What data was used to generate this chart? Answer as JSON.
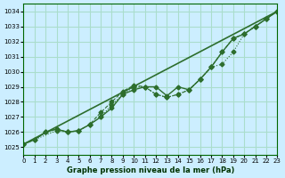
{
  "bg_color": "#cceeff",
  "grid_color": "#aaddcc",
  "line_color": "#2d6e2d",
  "title": "Graphe pression niveau de la mer (hPa)",
  "xlim": [
    0,
    23
  ],
  "ylim": [
    1024.5,
    1034.5
  ],
  "yticks": [
    1025,
    1026,
    1027,
    1028,
    1029,
    1030,
    1031,
    1032,
    1033,
    1034
  ],
  "xticks": [
    0,
    1,
    2,
    3,
    4,
    5,
    6,
    7,
    8,
    9,
    10,
    11,
    12,
    13,
    14,
    15,
    16,
    17,
    18,
    19,
    20,
    21,
    22,
    23
  ],
  "series1_x": [
    0,
    1,
    2,
    3,
    4,
    5,
    6,
    7,
    8,
    9,
    10,
    11,
    12,
    13,
    14,
    15,
    16,
    17,
    18,
    19,
    20,
    21,
    22,
    23
  ],
  "series1_y": [
    1025.2,
    1025.5,
    1026.0,
    1026.2,
    1026.0,
    1026.1,
    1026.5,
    1027.0,
    1027.6,
    1028.5,
    1028.8,
    1029.0,
    1029.0,
    1028.4,
    1029.0,
    1028.8,
    1029.5,
    1030.3,
    1031.3,
    1032.2,
    1032.5,
    1033.0,
    1033.5,
    1034.0
  ],
  "series2_x": [
    0,
    1,
    2,
    3,
    4,
    5,
    6,
    7,
    8,
    9,
    10,
    11,
    12,
    13,
    14,
    15,
    16,
    17,
    18,
    19,
    20,
    21,
    22,
    23
  ],
  "series2_y": [
    1025.2,
    1025.5,
    1026.0,
    1026.2,
    1026.0,
    1026.1,
    1026.5,
    1027.3,
    1028.0,
    1028.7,
    1029.1,
    1029.0,
    1028.5,
    1028.3,
    1028.5,
    1028.8,
    1029.5,
    1030.3,
    1031.3,
    1032.2,
    1032.5,
    1033.0,
    1033.5,
    1034.0
  ],
  "series3_x": [
    0,
    3,
    4,
    5,
    6,
    7,
    8,
    9,
    10,
    11,
    12,
    13,
    14,
    15,
    16,
    17,
    18,
    19,
    20,
    21,
    22,
    23
  ],
  "series3_y": [
    1025.2,
    1026.1,
    1026.0,
    1026.1,
    1026.5,
    1027.0,
    1027.8,
    1028.5,
    1029.0,
    1029.0,
    1028.5,
    1028.3,
    1028.5,
    1028.8,
    1029.5,
    1030.3,
    1030.5,
    1031.3,
    1032.5,
    1033.0,
    1033.5,
    1034.0
  ]
}
